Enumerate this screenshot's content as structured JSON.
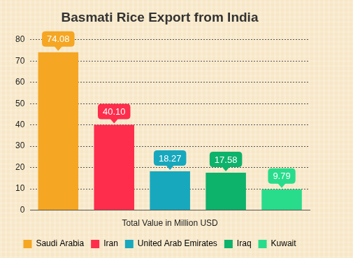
{
  "chart_data": {
    "type": "bar",
    "title": "Basmati Rice Export from India",
    "x_label": "Total Value in Million USD",
    "categories": [
      "Saudi Arabia",
      "Iran",
      "United Arab Emirates",
      "Iraq",
      "Kuwait"
    ],
    "values": [
      74.08,
      40.1,
      18.27,
      17.58,
      9.79
    ],
    "value_labels": [
      "74.08",
      "40.10",
      "18.27",
      "17.58",
      "9.79"
    ],
    "colors": [
      "#f5a623",
      "#fe2d4c",
      "#17a8bd",
      "#0db26b",
      "#28dc8b"
    ],
    "ylim": [
      0,
      80
    ],
    "yticks": [
      0,
      10,
      20,
      30,
      40,
      50,
      60,
      70,
      80
    ],
    "grid": true,
    "legend": "bottom",
    "data_labels": true,
    "tick_labels": "y"
  }
}
